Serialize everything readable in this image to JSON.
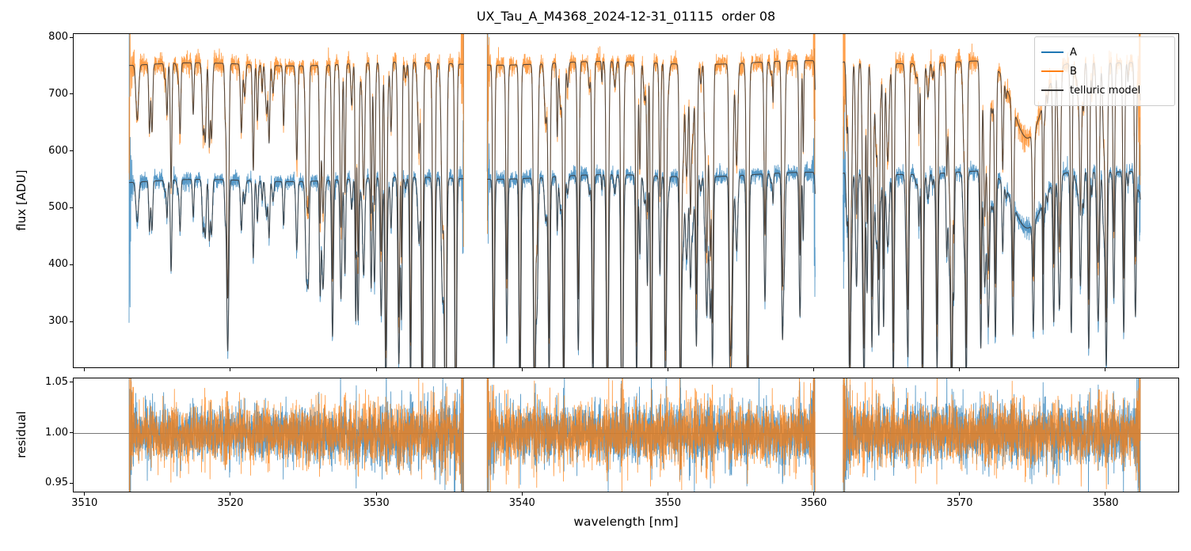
{
  "chart_data": {
    "type": "line",
    "title": "UX_Tau_A_M4368_2024-12-31_01115  order 08",
    "xlabel": "wavelength [nm]",
    "xlim": [
      3509.2,
      3585.05
    ],
    "xticks": [
      3510,
      3520,
      3530,
      3540,
      3550,
      3560,
      3570,
      3580
    ],
    "top_panel": {
      "ylabel": "flux [ADU]",
      "ylim": [
        218,
        807
      ],
      "yticks": [
        {
          "label": "300",
          "value": 300
        },
        {
          "label": "400",
          "value": 400
        },
        {
          "label": "500",
          "value": 500
        },
        {
          "label": "600",
          "value": 600
        },
        {
          "label": "700",
          "value": 700
        },
        {
          "label": "800",
          "value": 800
        }
      ]
    },
    "bottom_panel": {
      "ylabel": "residual",
      "ylim": [
        0.9406,
        1.0547
      ],
      "yticks": [
        {
          "label": "0.95",
          "value": 0.95
        },
        {
          "label": "1.00",
          "value": 1.0
        },
        {
          "label": "1.05",
          "value": 1.05
        }
      ],
      "hline": 1.0,
      "hline_color": "#777777"
    },
    "legend": [
      {
        "label": "A",
        "color": "#1f77b4"
      },
      {
        "label": "B",
        "color": "#ff7f0e"
      },
      {
        "label": "telluric model",
        "color": "#3a3a3a"
      }
    ],
    "series": {
      "segments_nm": [
        [
          3513.0,
          3535.95
        ],
        [
          3537.55,
          3560.05
        ],
        [
          3561.95,
          3582.35
        ]
      ],
      "sample_step_nm": 0.01,
      "continuum": {
        "A": {
          "base": 547,
          "slope": 0.3
        },
        "B": {
          "base": 753,
          "slope": 0.09
        },
        "wiggle_amp": 3,
        "wiggle_freq": 0.45
      },
      "noise_sigma_adu": {
        "A": 7,
        "B": 9
      },
      "residual_sigma": 0.013,
      "seed": 7,
      "edge_spike": {
        "amp": 40,
        "scale_nm": 0.06
      },
      "residual_edge_spike": {
        "amp": 10,
        "scale_nm": 0.1
      },
      "telluric": {
        "n_random_lines": 140,
        "broad_dip": {
          "center": 3574.6,
          "width": 1.0,
          "depth": 0.18
        },
        "deep_lines": [
          [
            3514.4,
            0.16,
            0.05
          ],
          [
            3515.6,
            0.12,
            0.05
          ],
          [
            3516.5,
            0.15,
            0.05
          ],
          [
            3517.4,
            0.12,
            0.05
          ],
          [
            3518.5,
            0.19,
            0.05
          ],
          [
            3519.6,
            0.12,
            0.05
          ],
          [
            3520.7,
            0.16,
            0.06
          ],
          [
            3521.8,
            0.13,
            0.05
          ],
          [
            3522.6,
            0.18,
            0.05
          ],
          [
            3523.6,
            0.14,
            0.05
          ],
          [
            3524.5,
            0.22,
            0.06
          ],
          [
            3525.3,
            0.25,
            0.05
          ],
          [
            3526.1,
            0.35,
            0.05
          ],
          [
            3526.95,
            0.5,
            0.06
          ],
          [
            3527.8,
            0.3,
            0.05
          ],
          [
            3528.7,
            0.45,
            0.06
          ],
          [
            3529.6,
            0.35,
            0.05
          ],
          [
            3530.6,
            0.6,
            0.06
          ],
          [
            3531.5,
            0.5,
            0.06
          ],
          [
            3532.3,
            0.65,
            0.06
          ],
          [
            3533.1,
            0.8,
            0.06
          ],
          [
            3533.9,
            0.93,
            0.07
          ],
          [
            3534.7,
            0.96,
            0.07
          ],
          [
            3535.4,
            0.9,
            0.06
          ],
          [
            3538.0,
            0.7,
            0.06
          ],
          [
            3538.9,
            0.5,
            0.06
          ],
          [
            3539.8,
            0.65,
            0.06
          ],
          [
            3540.8,
            0.8,
            0.07
          ],
          [
            3541.8,
            0.6,
            0.06
          ],
          [
            3542.8,
            0.75,
            0.06
          ],
          [
            3543.8,
            0.55,
            0.06
          ],
          [
            3544.8,
            0.7,
            0.06
          ],
          [
            3545.8,
            0.8,
            0.07
          ],
          [
            3546.8,
            0.9,
            0.07
          ],
          [
            3547.8,
            0.65,
            0.06
          ],
          [
            3548.8,
            0.75,
            0.06
          ],
          [
            3549.8,
            0.55,
            0.06
          ],
          [
            3550.8,
            0.65,
            0.06
          ],
          [
            3551.9,
            0.5,
            0.06
          ],
          [
            3553.0,
            0.6,
            0.06
          ],
          [
            3554.2,
            0.45,
            0.06
          ],
          [
            3555.4,
            0.55,
            0.06
          ],
          [
            3556.6,
            0.4,
            0.06
          ],
          [
            3557.8,
            0.5,
            0.06
          ],
          [
            3559.0,
            0.45,
            0.06
          ],
          [
            3562.4,
            0.5,
            0.06
          ],
          [
            3563.4,
            0.6,
            0.06
          ],
          [
            3564.4,
            0.5,
            0.06
          ],
          [
            3565.4,
            0.65,
            0.06
          ],
          [
            3566.4,
            0.55,
            0.06
          ],
          [
            3567.4,
            0.7,
            0.07
          ],
          [
            3568.4,
            0.6,
            0.06
          ],
          [
            3569.4,
            0.75,
            0.07
          ],
          [
            3570.4,
            0.65,
            0.06
          ],
          [
            3571.4,
            0.55,
            0.06
          ],
          [
            3572.4,
            0.5,
            0.06
          ],
          [
            3573.6,
            0.45,
            0.06
          ],
          [
            3575.0,
            0.4,
            0.06
          ],
          [
            3576.4,
            0.45,
            0.06
          ],
          [
            3577.6,
            0.5,
            0.06
          ],
          [
            3578.8,
            0.55,
            0.06
          ],
          [
            3580.0,
            0.6,
            0.07
          ],
          [
            3581.2,
            0.5,
            0.06
          ],
          [
            3582.0,
            0.45,
            0.06
          ]
        ]
      }
    }
  }
}
